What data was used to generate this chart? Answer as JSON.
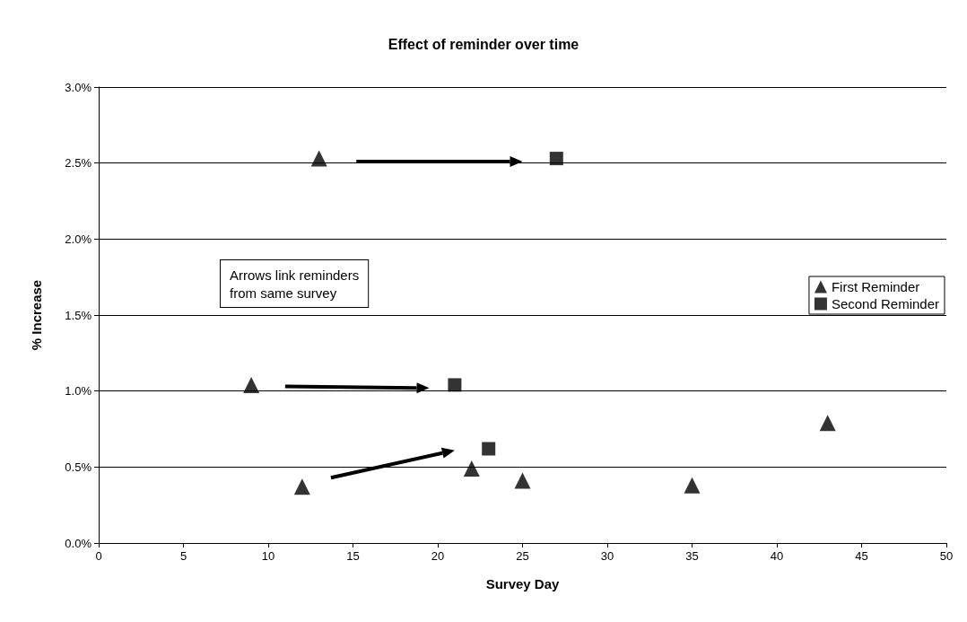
{
  "chart_data": {
    "type": "scatter",
    "title": "Effect of reminder over time",
    "xlabel": "Survey Day",
    "ylabel": "% Increase",
    "xlim": [
      0,
      50
    ],
    "xticks": [
      0,
      5,
      10,
      15,
      20,
      25,
      30,
      35,
      40,
      45,
      50
    ],
    "ylim": [
      0,
      3
    ],
    "yticks": [
      {
        "value": 0,
        "label": "0.0%"
      },
      {
        "value": 0.5,
        "label": "0.5%"
      },
      {
        "value": 1,
        "label": "1.0%"
      },
      {
        "value": 1.5,
        "label": "1.5%"
      },
      {
        "value": 2,
        "label": "2.0%"
      },
      {
        "value": 2.5,
        "label": "2.5%"
      },
      {
        "value": 3,
        "label": "3.0%"
      }
    ],
    "grid": "y",
    "legend": "right",
    "annotations": [
      "Arrows link reminders from same survey"
    ],
    "series": [
      {
        "name": "First Reminder",
        "color": "#000000",
        "marker": "triangle",
        "x": [
          13,
          9,
          12,
          22,
          25,
          35,
          43
        ],
        "values": [
          2.53,
          1.04,
          0.37,
          0.49,
          0.41,
          0.38,
          0.79
        ]
      },
      {
        "name": "Second Reminder",
        "color": "#000000",
        "marker": "square",
        "x": [
          27,
          21,
          23
        ],
        "values": [
          2.53,
          1.04,
          0.62
        ]
      }
    ]
  }
}
